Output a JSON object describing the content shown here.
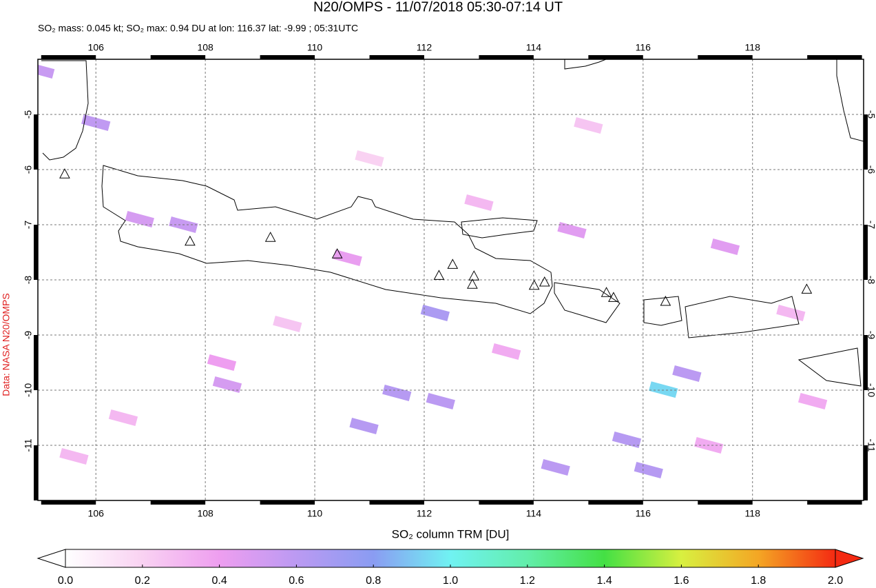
{
  "chart_data": {
    "type": "map",
    "title": "N20/OMPS - 11/07/2018 05:30-07:14 UT",
    "subtitle": "SO₂ mass: 0.045 kt; SO₂ max: 0.94 DU at lon: 116.37 lat: -9.99 ; 05:31UTC",
    "xlim": [
      104.94,
      120.03
    ],
    "ylim": [
      -12,
      -4
    ],
    "xticks": [
      106,
      108,
      110,
      112,
      114,
      116,
      118
    ],
    "yticks": [
      -5,
      -6,
      -7,
      -8,
      -9,
      -10,
      -11
    ],
    "grid": true,
    "volcanoes": {
      "x": [
        105.43,
        107.72,
        109.19,
        110.41,
        112.27,
        112.52,
        112.91,
        112.88,
        114.01,
        114.2,
        115.33,
        115.46,
        116.41,
        118.99
      ],
      "y": [
        -6.09,
        -7.31,
        -7.24,
        -7.54,
        -7.93,
        -7.73,
        -7.94,
        -8.09,
        -8.11,
        -8.05,
        -8.24,
        -8.33,
        -8.4,
        -8.18
      ]
    },
    "pixels": {
      "lon": [
        104.98,
        106.0,
        106.8,
        107.6,
        108.4,
        110.6,
        112.2,
        111.5,
        112.3,
        110.9,
        114.4,
        115.7,
        116.1,
        116.37,
        116.8,
        114.7,
        108.3,
        106.5,
        109.5,
        113.5,
        117.5,
        118.7,
        119.1,
        105.6,
        111.0,
        113.0,
        115.0,
        117.2
      ],
      "lat": [
        -4.2,
        -5.15,
        -6.9,
        -7.0,
        -9.9,
        -7.6,
        -8.6,
        -10.05,
        -10.2,
        -10.65,
        -11.4,
        -10.9,
        -11.45,
        -9.99,
        -9.7,
        -7.1,
        -9.5,
        -10.5,
        -8.8,
        -9.3,
        -7.4,
        -8.6,
        -10.2,
        -11.2,
        -5.8,
        -6.6,
        -5.2,
        -11.0
      ],
      "values": [
        0.55,
        0.58,
        0.5,
        0.55,
        0.5,
        0.42,
        0.66,
        0.62,
        0.6,
        0.62,
        0.6,
        0.62,
        0.62,
        0.94,
        0.6,
        0.45,
        0.4,
        0.3,
        0.25,
        0.35,
        0.45,
        0.3,
        0.35,
        0.3,
        0.2,
        0.3,
        0.25,
        0.35
      ]
    },
    "colorbar": {
      "label": "SO₂ column TRM [DU]",
      "lim": [
        0,
        2
      ],
      "ticks": [
        {
          "value": 0,
          "label": "0.0"
        },
        {
          "value": 0.2,
          "label": "0.2"
        },
        {
          "value": 0.4,
          "label": "0.4"
        },
        {
          "value": 0.6,
          "label": "0.6"
        },
        {
          "value": 0.8,
          "label": "0.8"
        },
        {
          "value": 1,
          "label": "1.0"
        },
        {
          "value": 1.2,
          "label": "1.2"
        },
        {
          "value": 1.4,
          "label": "1.4"
        },
        {
          "value": 1.6,
          "label": "1.6"
        },
        {
          "value": 1.8,
          "label": "1.8"
        },
        {
          "value": 2,
          "label": "2.0"
        }
      ],
      "colors": [
        "#ffffff",
        "#f9d2f2",
        "#ee9ef0",
        "#bb9af2",
        "#8a9cf2",
        "#70f2f2",
        "#62eeaa",
        "#44e044",
        "#d8f040",
        "#f4a624",
        "#f42a12"
      ]
    },
    "credit": "Data: NASA N20/OMPS"
  }
}
